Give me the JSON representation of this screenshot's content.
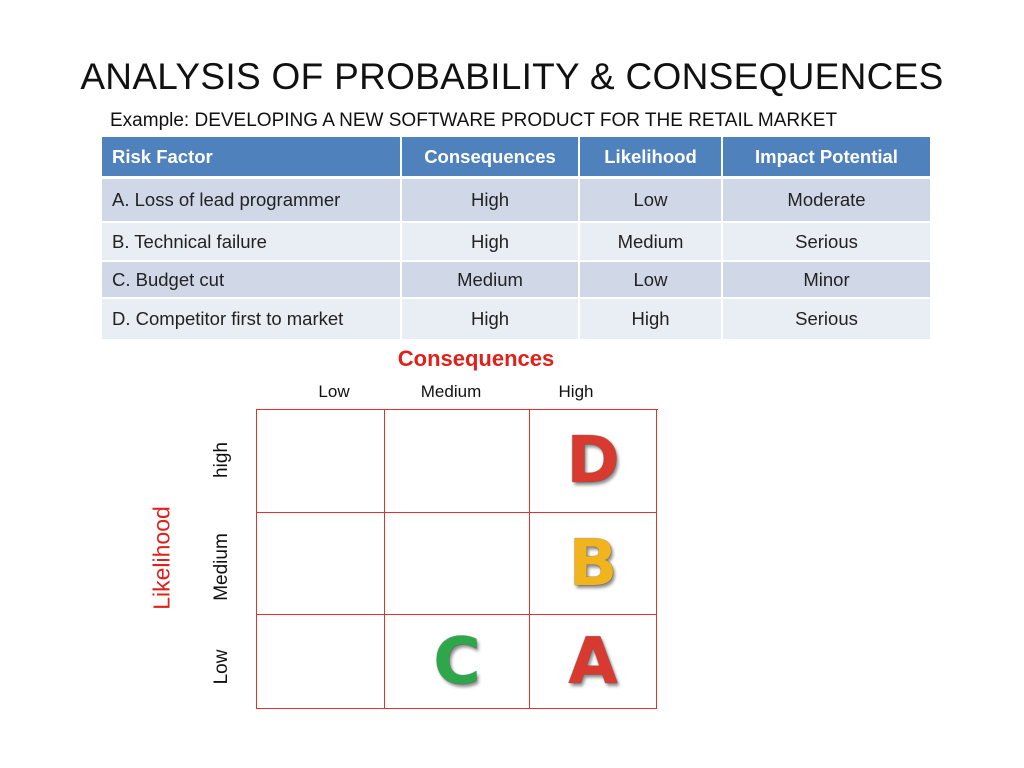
{
  "slide": {
    "title": "ANALYSIS OF PROBABILITY & CONSEQUENCES",
    "subtitle": "Example: DEVELOPING A NEW SOFTWARE PRODUCT FOR THE RETAIL MARKET"
  },
  "table": {
    "headers": [
      "Risk Factor",
      "Consequences",
      "Likelihood",
      "Impact Potential"
    ],
    "rows": [
      [
        "A. Loss of lead programmer",
        "High",
        "Low",
        "Moderate"
      ],
      [
        "B. Technical failure",
        "High",
        "Medium",
        "Serious"
      ],
      [
        "C. Budget cut",
        "Medium",
        "Low",
        "Minor"
      ],
      [
        "D. Competitor first to market",
        "High",
        "High",
        "Serious"
      ]
    ]
  },
  "matrix": {
    "consequences_heading": "Consequences",
    "likelihood_heading": "Likelihood",
    "columns": [
      "Low",
      "Medium",
      "High"
    ],
    "rows": [
      "high",
      "Medium",
      "Low"
    ],
    "cells": [
      [
        "",
        "",
        "D"
      ],
      [
        "",
        "",
        "B"
      ],
      [
        "",
        "C",
        "A"
      ]
    ],
    "colors": {
      "grid_line": "#e53030",
      "heading": "#e0201b",
      "letter_D": "#d83a30",
      "letter_B": "#f1b41c",
      "letter_C": "#2ea64a",
      "letter_A": "#d83a30"
    }
  }
}
